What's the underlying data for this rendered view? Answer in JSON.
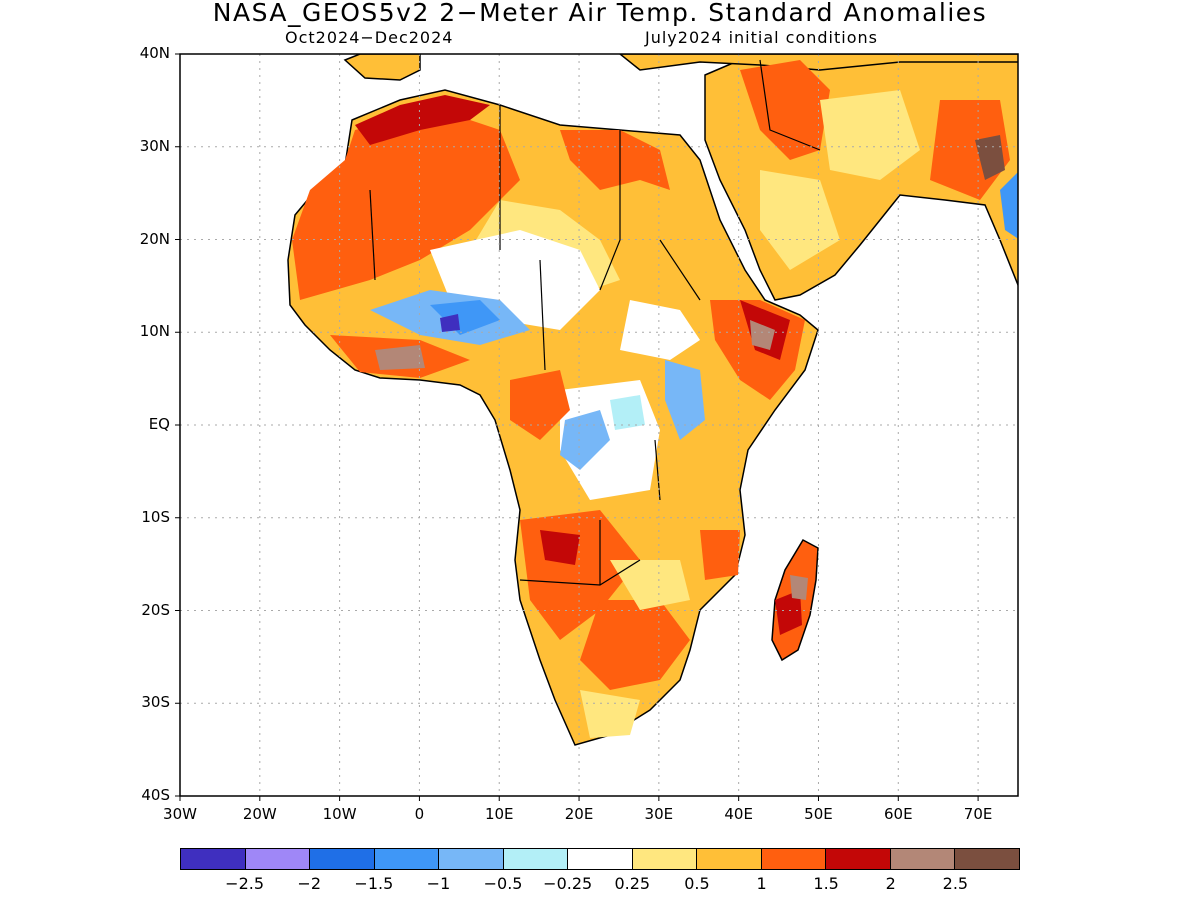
{
  "title": "NASA_GEOS5v2 2−Meter Air Temp. Standard Anomalies",
  "subtitle_left": "Oct2024−Dec2024",
  "subtitle_right": "July2024 initial conditions",
  "map": {
    "lon_range": [
      -30,
      75
    ],
    "lat_range": [
      -40,
      40
    ],
    "grid": true,
    "lat_labels": [
      "40N",
      "30N",
      "20N",
      "10N",
      "EQ",
      "10S",
      "20S",
      "30S",
      "40S"
    ],
    "lon_labels": [
      "30W",
      "20W",
      "10W",
      "0",
      "10E",
      "20E",
      "30E",
      "40E",
      "50E",
      "60E",
      "70E"
    ]
  },
  "colorbar": {
    "colors": [
      "#3f2fbf",
      "#9f87f7",
      "#1f6fe7",
      "#3f97f7",
      "#77b7f7",
      "#b3eff7",
      "#ffffff",
      "#ffe77f",
      "#ffbf37",
      "#ff5f0f",
      "#c30707",
      "#b38777",
      "#7b4f3f"
    ],
    "labels": [
      "−2.5",
      "−2",
      "−1.5",
      "−1",
      "−0.5",
      "−0.25",
      "0.25",
      "0.5",
      "1",
      "1.5",
      "2",
      "2.5"
    ]
  }
}
